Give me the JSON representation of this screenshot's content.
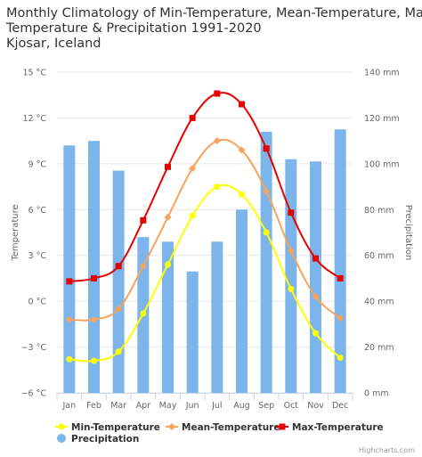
{
  "chart_data": {
    "type": "bar+line",
    "title_lines": [
      "Monthly Climatology of Min-Temperature, Mean-Temperature, Max-",
      "Temperature & Precipitation 1991-2020",
      "Kjosar, Iceland"
    ],
    "categories": [
      "Jan",
      "Feb",
      "Mar",
      "Apr",
      "May",
      "Jun",
      "Jul",
      "Aug",
      "Sep",
      "Oct",
      "Nov",
      "Dec"
    ],
    "y_left": {
      "label": "Temperature",
      "min": -6,
      "max": 15,
      "ticks": [
        -6,
        -3,
        0,
        3,
        6,
        9,
        12,
        15
      ],
      "tick_labels": [
        "−6 °C",
        "−3 °C",
        "0 °C",
        "3 °C",
        "6 °C",
        "9 °C",
        "12 °C",
        "15 °C"
      ]
    },
    "y_right": {
      "label": "Precipitation",
      "min": 0,
      "max": 140,
      "ticks": [
        0,
        20,
        40,
        60,
        80,
        100,
        120,
        140
      ],
      "tick_labels": [
        "0 mm",
        "20 mm",
        "40 mm",
        "60 mm",
        "80 mm",
        "100 mm",
        "120 mm",
        "140 mm"
      ]
    },
    "series": [
      {
        "name": "Precipitation",
        "type": "bar",
        "axis": "right",
        "color": "#7cb5ec",
        "values": [
          108,
          110,
          97,
          68,
          66,
          53,
          66,
          80,
          114,
          102,
          101,
          115
        ]
      },
      {
        "name": "Min-Temperature",
        "type": "line",
        "axis": "left",
        "color": "#ffff00",
        "marker": "circle",
        "values": [
          -3.8,
          -3.9,
          -3.3,
          -0.8,
          2.4,
          5.6,
          7.5,
          7.0,
          4.5,
          0.8,
          -2.1,
          -3.7
        ]
      },
      {
        "name": "Mean-Temperature",
        "type": "line",
        "axis": "left",
        "color": "#f7a35c",
        "marker": "diamond",
        "values": [
          -1.2,
          -1.2,
          -0.5,
          2.3,
          5.5,
          8.7,
          10.5,
          9.9,
          7.2,
          3.3,
          0.3,
          -1.1
        ]
      },
      {
        "name": "Max-Temperature",
        "type": "line",
        "axis": "left",
        "color": "#e60000",
        "marker": "square",
        "values": [
          1.3,
          1.5,
          2.3,
          5.3,
          8.8,
          12.0,
          13.6,
          12.9,
          10.0,
          5.8,
          2.8,
          1.5
        ]
      }
    ],
    "legend_position": "bottom-left",
    "grid": true,
    "credit": "Highcharts.com"
  }
}
